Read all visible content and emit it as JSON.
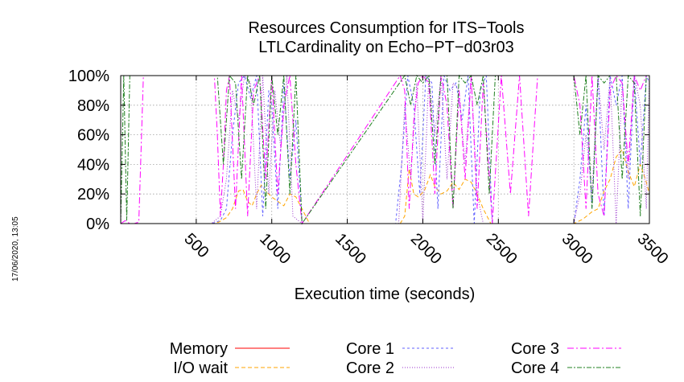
{
  "side_stamp": "17/06/2020, 13:05",
  "chart_data": {
    "type": "line",
    "title": "Resources Consumption for ITS−Tools",
    "subtitle": "LTLCardinality on Echo−PT−d03r03",
    "xlabel": "Execution time (seconds)",
    "ylabel": "",
    "xlim": [
      0,
      3500
    ],
    "ylim": [
      0,
      100
    ],
    "xticks": [
      500,
      1000,
      1500,
      2000,
      2500,
      3000,
      3500
    ],
    "xtick_labels": [
      "500",
      "1000",
      "1500",
      "2000",
      "2500",
      "3000",
      "3500"
    ],
    "yticks": [
      0,
      20,
      40,
      60,
      80,
      100
    ],
    "ytick_labels": [
      "0%",
      "20%",
      "40%",
      "60%",
      "80%",
      "100%"
    ],
    "grid": true,
    "legend": "bottom",
    "series": [
      {
        "name": "Memory",
        "color": "#ff0000",
        "dash": "solid",
        "x": [
          0,
          3500
        ],
        "y": [
          0,
          0
        ]
      },
      {
        "name": "I/O wait",
        "color": "#ffa500",
        "dash": "5,3",
        "x": [
          0,
          600,
          650,
          700,
          740,
          780,
          810,
          840,
          870,
          900,
          930,
          960,
          1000,
          1040,
          1080,
          1120,
          1160,
          1200,
          1250,
          1850,
          1880,
          1910,
          1940,
          1970,
          2010,
          2050,
          2080,
          2120,
          2160,
          2200,
          2240,
          2280,
          2320,
          2360,
          2400,
          2450,
          3000,
          3060,
          3120,
          3160,
          3200,
          3240,
          3280,
          3320,
          3360,
          3400,
          3440,
          3480,
          3500
        ],
        "y": [
          0,
          0,
          1,
          4,
          10,
          22,
          23,
          15,
          12,
          20,
          26,
          22,
          18,
          15,
          12,
          20,
          18,
          10,
          0,
          0,
          5,
          37,
          20,
          18,
          22,
          33,
          25,
          20,
          22,
          28,
          23,
          30,
          28,
          20,
          10,
          0,
          0,
          3,
          8,
          10,
          22,
          30,
          45,
          50,
          35,
          25,
          40,
          28,
          20
        ]
      },
      {
        "name": "Core 1",
        "color": "#6060ff",
        "dash": "3,3",
        "x": [
          0,
          600,
          660,
          700,
          740,
          780,
          820,
          860,
          900,
          940,
          980,
          1000,
          1040,
          1080,
          1120,
          1160,
          1200,
          1820,
          1860,
          1900,
          1940,
          1980,
          2020,
          2060,
          2100,
          2140,
          2180,
          2220,
          2260,
          2300,
          2340,
          2380,
          2420,
          2460,
          3000,
          3040,
          3080,
          3120,
          3160,
          3200,
          3240,
          3280,
          3320,
          3360,
          3400,
          3440,
          3480,
          3500
        ],
        "y": [
          0,
          0,
          2,
          10,
          60,
          95,
          100,
          85,
          100,
          5,
          90,
          80,
          10,
          95,
          30,
          70,
          0,
          0,
          40,
          100,
          80,
          20,
          100,
          95,
          10,
          100,
          90,
          95,
          70,
          100,
          0,
          90,
          100,
          0,
          0,
          30,
          80,
          10,
          100,
          5,
          100,
          80,
          100,
          10,
          100,
          40,
          100,
          95
        ]
      },
      {
        "name": "Core 2",
        "color": "#9932cc",
        "dash": "1,2",
        "x": [
          0,
          600,
          660,
          700,
          740,
          780,
          820,
          860,
          900,
          940,
          980,
          1020,
          1060,
          1100,
          1140,
          1200,
          1840,
          1880,
          1920,
          1960,
          2000,
          2040,
          2080,
          2120,
          2160,
          2200,
          2240,
          2280,
          2320,
          2360,
          2400,
          3000,
          3040,
          3080,
          3120,
          3160,
          3200,
          3240,
          3280,
          3320,
          3360,
          3400,
          3440,
          3480,
          3500
        ],
        "y": [
          0,
          0,
          5,
          30,
          90,
          70,
          100,
          95,
          10,
          100,
          20,
          90,
          50,
          100,
          5,
          0,
          0,
          80,
          30,
          95,
          0,
          100,
          60,
          100,
          30,
          95,
          90,
          40,
          100,
          20,
          0,
          0,
          20,
          60,
          20,
          100,
          50,
          100,
          0,
          95,
          30,
          100,
          80,
          10,
          100
        ]
      },
      {
        "name": "Core 3",
        "color": "#ff00ff",
        "dash": "8,3,2,3",
        "x": [
          0,
          30,
          60,
          90,
          120,
          150,
          620,
          640,
          660,
          680,
          700,
          720,
          760,
          800,
          840,
          880,
          920,
          960,
          1000,
          1040,
          1080,
          1120,
          1160,
          1200,
          1850,
          1880,
          1910,
          1940,
          1970,
          2000,
          2040,
          2080,
          2120,
          2160,
          2200,
          2240,
          2280,
          2320,
          2360,
          2400,
          2460,
          2520,
          2580,
          2640,
          2700,
          2760,
          3000,
          3040,
          3080,
          3120,
          3160,
          3200,
          3240,
          3280,
          3320,
          3360,
          3400,
          3440,
          3480,
          3500
        ],
        "y": [
          0,
          2,
          0,
          0,
          1,
          100,
          100,
          60,
          5,
          40,
          90,
          100,
          10,
          100,
          5,
          90,
          100,
          30,
          100,
          20,
          80,
          100,
          40,
          0,
          100,
          90,
          10,
          70,
          95,
          100,
          95,
          20,
          100,
          80,
          10,
          90,
          30,
          100,
          10,
          95,
          0,
          100,
          20,
          100,
          5,
          100,
          100,
          80,
          10,
          100,
          20,
          5,
          90,
          100,
          95,
          40,
          100,
          90,
          100,
          100
        ]
      },
      {
        "name": "Core 4",
        "color": "#208020",
        "dash": "6,2,2,2",
        "x": [
          0,
          20,
          40,
          60,
          80,
          100,
          600,
          640,
          680,
          720,
          760,
          800,
          840,
          880,
          920,
          960,
          1000,
          1040,
          1080,
          1120,
          1160,
          1200,
          1880,
          1920,
          1960,
          2000,
          2040,
          2080,
          2120,
          2160,
          2200,
          2240,
          2280,
          2320,
          2360,
          2400,
          2440,
          2480,
          3000,
          3040,
          3080,
          3120,
          3160,
          3200,
          3240,
          3280,
          3320,
          3360,
          3400,
          3440,
          3480,
          3500
        ],
        "y": [
          0,
          100,
          2,
          100,
          100,
          100,
          100,
          100,
          40,
          100,
          95,
          30,
          100,
          80,
          100,
          10,
          100,
          60,
          100,
          20,
          100,
          0,
          100,
          80,
          100,
          95,
          100,
          40,
          100,
          100,
          10,
          100,
          95,
          100,
          80,
          100,
          20,
          100,
          100,
          60,
          100,
          10,
          100,
          95,
          100,
          100,
          30,
          100,
          95,
          5,
          100,
          100
        ]
      }
    ]
  }
}
